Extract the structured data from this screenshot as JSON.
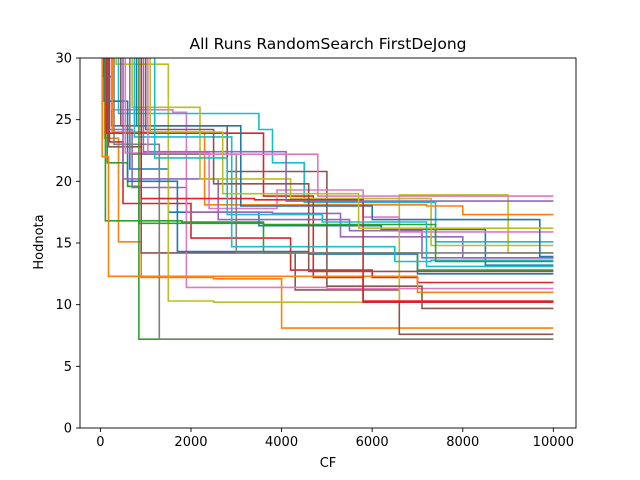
{
  "chart_data": {
    "type": "line",
    "title": "All Runs RandomSearch FirstDeJong",
    "xlabel": "CF",
    "ylabel": "Hodnota",
    "xlim": [
      -450,
      10500
    ],
    "ylim": [
      0,
      30
    ],
    "xticks": [
      0,
      2000,
      4000,
      6000,
      8000,
      10000
    ],
    "yticks": [
      0,
      5,
      10,
      15,
      20,
      25,
      30
    ],
    "grid": false,
    "step": true,
    "series": [
      {
        "color": "#1f77b4",
        "x": [
          0,
          60,
          250,
          650,
          1500,
          3500,
          6200,
          8500,
          10000
        ],
        "y": [
          34,
          28.5,
          24.5,
          21,
          17.5,
          16.4,
          16.1,
          13.2,
          13.2
        ]
      },
      {
        "color": "#ff7f0e",
        "x": [
          0,
          90,
          400,
          900,
          2500,
          4000,
          10000
        ],
        "y": [
          34,
          23.5,
          15.1,
          12.2,
          12.1,
          8.1,
          8.1
        ]
      },
      {
        "color": "#2ca02c",
        "x": [
          0,
          150,
          600,
          850,
          10000
        ],
        "y": [
          34,
          21.5,
          19.6,
          7.2,
          7.2
        ]
      },
      {
        "color": "#d62728",
        "x": [
          0,
          200,
          500,
          2000,
          4200,
          6000,
          7000,
          10000
        ],
        "y": [
          34,
          23.2,
          18.2,
          15.4,
          12.8,
          12.2,
          11.8,
          11.8
        ]
      },
      {
        "color": "#9467bd",
        "x": [
          0,
          120,
          700,
          1900,
          3800,
          5300,
          8000,
          10000
        ],
        "y": [
          34,
          24.2,
          19.5,
          17.5,
          17.4,
          15.5,
          13.8,
          13.8
        ]
      },
      {
        "color": "#8c564b",
        "x": [
          0,
          180,
          900,
          2100,
          4300,
          6600,
          10000
        ],
        "y": [
          34,
          22.8,
          14.2,
          14.2,
          11.2,
          7.6,
          7.6
        ]
      },
      {
        "color": "#e377c2",
        "x": [
          0,
          250,
          1600,
          1900,
          5000,
          8800,
          10000
        ],
        "y": [
          34,
          25.8,
          25.6,
          11.4,
          11.3,
          11.3,
          11.3
        ]
      },
      {
        "color": "#7f7f7f",
        "x": [
          0,
          300,
          1300,
          10000
        ],
        "y": [
          34,
          23.0,
          7.2,
          7.2
        ]
      },
      {
        "color": "#bcbd22",
        "x": [
          0,
          350,
          1500,
          2500,
          6600,
          9000,
          10000
        ],
        "y": [
          34,
          29.5,
          10.3,
          10.2,
          18.9,
          14.2,
          14.2
        ]
      },
      {
        "color": "#17becf",
        "x": [
          0,
          400,
          3500,
          3800,
          4500,
          7400,
          10000
        ],
        "y": [
          34,
          25.5,
          24.2,
          21.5,
          18.3,
          15.1,
          15.1
        ]
      },
      {
        "color": "#1f77b4",
        "x": [
          0,
          80,
          600,
          1700,
          4600,
          7000,
          9300,
          10000
        ],
        "y": [
          34,
          26.5,
          20.0,
          14.3,
          14.1,
          12.5,
          12.5,
          12.5
        ]
      },
      {
        "color": "#ff7f0e",
        "x": [
          0,
          260,
          2300,
          5400,
          7200,
          8000,
          10000
        ],
        "y": [
          34,
          24.0,
          18.1,
          18.1,
          18.0,
          17.3,
          17.3
        ]
      },
      {
        "color": "#2ca02c",
        "x": [
          0,
          110,
          1800,
          3600,
          7000,
          10000
        ],
        "y": [
          34,
          16.8,
          16.7,
          14.2,
          12.8,
          12.8
        ]
      },
      {
        "color": "#d62728",
        "x": [
          0,
          140,
          3600,
          4700,
          5800,
          10000
        ],
        "y": [
          34,
          23.9,
          18.8,
          12.2,
          10.3,
          10.3
        ]
      },
      {
        "color": "#9467bd",
        "x": [
          0,
          500,
          2600,
          5500,
          7100,
          10000
        ],
        "y": [
          34,
          20.2,
          16.9,
          16.0,
          13.8,
          13.8
        ]
      },
      {
        "color": "#8c564b",
        "x": [
          0,
          450,
          2800,
          5000,
          7100,
          10000
        ],
        "y": [
          34,
          24.5,
          20.8,
          11.5,
          9.7,
          9.7
        ]
      },
      {
        "color": "#e377c2",
        "x": [
          0,
          550,
          2400,
          3900,
          5800,
          6600,
          10000
        ],
        "y": [
          34,
          22.3,
          17.8,
          19.3,
          17.1,
          15.9,
          15.9
        ]
      },
      {
        "color": "#7f7f7f",
        "x": [
          0,
          650,
          3000,
          10000
        ],
        "y": [
          34,
          22.2,
          14.2,
          14.2
        ]
      },
      {
        "color": "#bcbd22",
        "x": [
          0,
          700,
          2200,
          4200,
          7300,
          10000
        ],
        "y": [
          34,
          26.0,
          20.2,
          18.6,
          14.8,
          14.8
        ]
      },
      {
        "color": "#17becf",
        "x": [
          0,
          750,
          2900,
          6500,
          7300,
          10000
        ],
        "y": [
          34,
          23.6,
          14.7,
          13.5,
          13.6,
          13.6
        ]
      },
      {
        "color": "#1f77b4",
        "x": [
          0,
          800,
          3100,
          6000,
          9700,
          10000
        ],
        "y": [
          34,
          24.5,
          18.0,
          16.9,
          13.9,
          13.9
        ]
      },
      {
        "color": "#ff7f0e",
        "x": [
          0,
          40,
          180,
          2000,
          7000,
          10000
        ],
        "y": [
          34,
          22.0,
          12.3,
          12.3,
          11.0,
          11.0
        ]
      },
      {
        "color": "#2ca02c",
        "x": [
          0,
          850,
          3600,
          7400,
          10000
        ],
        "y": [
          34,
          16.6,
          16.5,
          13.5,
          13.5
        ]
      },
      {
        "color": "#d62728",
        "x": [
          0,
          900,
          3400,
          5800,
          10000
        ],
        "y": [
          34,
          18.6,
          18.5,
          10.2,
          10.2
        ]
      },
      {
        "color": "#9467bd",
        "x": [
          0,
          950,
          4100,
          10000
        ],
        "y": [
          34,
          22.4,
          18.4,
          18.4
        ]
      },
      {
        "color": "#8c564b",
        "x": [
          0,
          1000,
          2500,
          4600,
          10000
        ],
        "y": [
          34,
          24.2,
          19.8,
          12.7,
          12.7
        ]
      },
      {
        "color": "#e377c2",
        "x": [
          0,
          1050,
          2300,
          4800,
          10000
        ],
        "y": [
          34,
          22.3,
          22.2,
          18.8,
          18.8
        ]
      },
      {
        "color": "#bcbd22",
        "x": [
          0,
          1100,
          2700,
          5700,
          10000
        ],
        "y": [
          34,
          24.0,
          19.0,
          16.2,
          16.2
        ]
      },
      {
        "color": "#17becf",
        "x": [
          0,
          1200,
          2800,
          4900,
          7200,
          10000
        ],
        "y": [
          34,
          21.9,
          17.3,
          16.7,
          13.1,
          13.1
        ]
      }
    ]
  }
}
